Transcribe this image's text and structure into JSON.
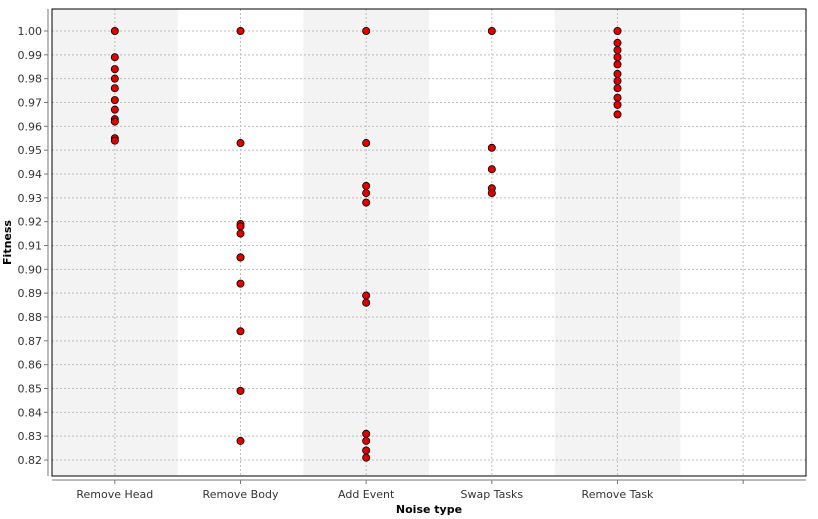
{
  "chart_data": {
    "type": "scatter",
    "title": "",
    "xlabel": "Noise type",
    "ylabel": "Fitness",
    "categories": [
      "Remove Head",
      "Remove Body",
      "Add Event",
      "Swap Tasks",
      "Remove Task"
    ],
    "ylim": [
      0.815,
      1.008
    ],
    "y_ticks": [
      "0.82",
      "0.83",
      "0.84",
      "0.85",
      "0.86",
      "0.87",
      "0.88",
      "0.89",
      "0.90",
      "0.91",
      "0.92",
      "0.93",
      "0.94",
      "0.95",
      "0.96",
      "0.97",
      "0.98",
      "0.99",
      "1.00"
    ],
    "grid": true,
    "legend": "none",
    "marker_color": "#e00000",
    "marker_edge_color": "#000000",
    "band_color": "#f3f3f3",
    "series": [
      {
        "category": "Remove Head",
        "values": [
          1.0,
          0.989,
          0.984,
          0.98,
          0.976,
          0.971,
          0.967,
          0.963,
          0.962,
          0.955,
          0.954
        ]
      },
      {
        "category": "Remove Body",
        "values": [
          1.0,
          0.953,
          0.919,
          0.918,
          0.915,
          0.905,
          0.905,
          0.894,
          0.874,
          0.849,
          0.828
        ]
      },
      {
        "category": "Add Event",
        "values": [
          1.0,
          0.953,
          0.935,
          0.932,
          0.928,
          0.889,
          0.886,
          0.831,
          0.828,
          0.824,
          0.821
        ]
      },
      {
        "category": "Swap Tasks",
        "values": [
          1.0,
          0.951,
          0.942,
          0.934,
          0.932
        ]
      },
      {
        "category": "Remove Task",
        "values": [
          1.0,
          0.995,
          0.992,
          0.989,
          0.986,
          0.982,
          0.979,
          0.976,
          0.972,
          0.969,
          0.965
        ]
      }
    ]
  }
}
